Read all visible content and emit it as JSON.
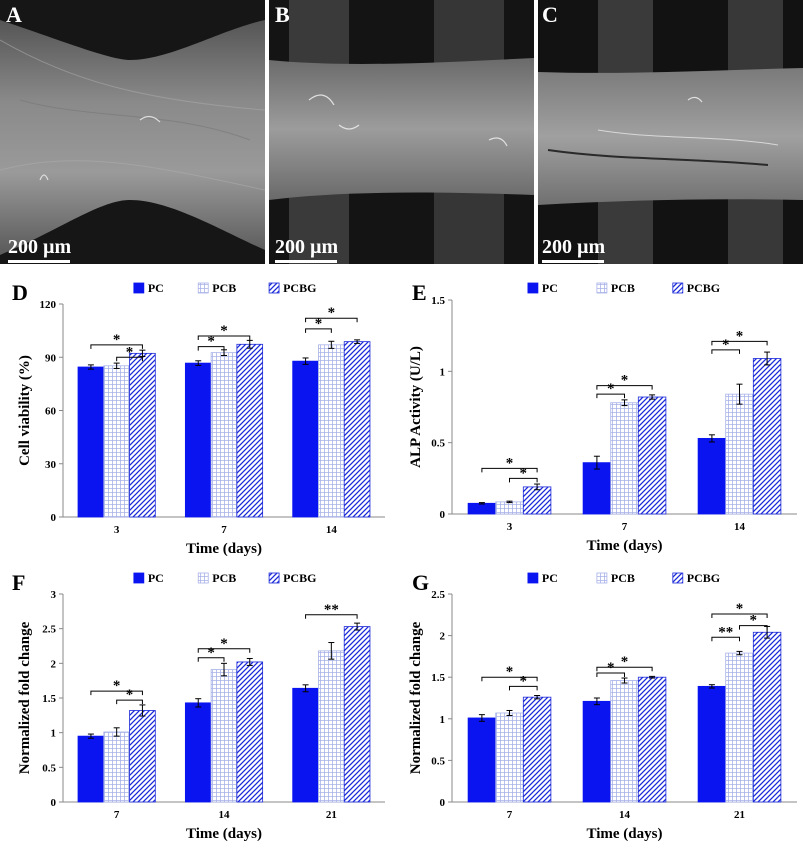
{
  "sem_panels": [
    {
      "letter": "A",
      "scalebar": "200 µm"
    },
    {
      "letter": "B",
      "scalebar": "200 µm"
    },
    {
      "letter": "C",
      "scalebar": "200 µm"
    }
  ],
  "legend_labels": [
    "PC",
    "PCB",
    "PCBG"
  ],
  "colors": {
    "pc": "#0a14f0",
    "pcb_line": "#a8b2e8",
    "pcbg_line": "#1a28d8"
  },
  "chart_data": [
    {
      "letter": "D",
      "type": "bar",
      "categories": [
        "3",
        "7",
        "14"
      ],
      "series": [
        {
          "name": "PC",
          "values": [
            84.5,
            86.7,
            87.8
          ],
          "err": [
            1.2,
            1.3,
            1.8
          ]
        },
        {
          "name": "PCB",
          "values": [
            85.2,
            92.6,
            97.0
          ],
          "err": [
            1.5,
            1.6,
            2.0
          ]
        },
        {
          "name": "PCBG",
          "values": [
            92.2,
            97.3,
            98.8
          ],
          "err": [
            1.8,
            2.2,
            1.0
          ]
        }
      ],
      "xlabel": "Time (days)",
      "ylabel": "Cell viability (%)",
      "ylim": [
        0,
        120
      ],
      "yticks": [
        "0",
        "30",
        "60",
        "90",
        "120"
      ],
      "significance": [
        {
          "group": 0,
          "from": 0,
          "to": 2,
          "y": 97,
          "label": "*"
        },
        {
          "group": 0,
          "from": 1,
          "to": 2,
          "y": 90,
          "label": "*"
        },
        {
          "group": 1,
          "from": 0,
          "to": 2,
          "y": 102,
          "label": "*"
        },
        {
          "group": 1,
          "from": 0,
          "to": 1,
          "y": 96,
          "label": "*"
        },
        {
          "group": 2,
          "from": 0,
          "to": 2,
          "y": 112,
          "label": "*"
        },
        {
          "group": 2,
          "from": 0,
          "to": 1,
          "y": 106,
          "label": "*"
        }
      ]
    },
    {
      "letter": "E",
      "type": "bar",
      "categories": [
        "3",
        "7",
        "14"
      ],
      "series": [
        {
          "name": "PC",
          "values": [
            0.075,
            0.36,
            0.53
          ],
          "err": [
            0.005,
            0.045,
            0.025
          ]
        },
        {
          "name": "PCB",
          "values": [
            0.085,
            0.78,
            0.84
          ],
          "err": [
            0.005,
            0.02,
            0.07
          ]
        },
        {
          "name": "PCBG",
          "values": [
            0.19,
            0.82,
            1.09
          ],
          "err": [
            0.02,
            0.015,
            0.045
          ]
        }
      ],
      "xlabel": "Time (days)",
      "ylabel": "ALP Activity (U/L)",
      "ylim": [
        0,
        1.5
      ],
      "yticks": [
        "0",
        "0.5",
        "1",
        "1.5"
      ],
      "significance": [
        {
          "group": 0,
          "from": 0,
          "to": 2,
          "y": 0.32,
          "label": "*"
        },
        {
          "group": 0,
          "from": 1,
          "to": 2,
          "y": 0.25,
          "label": "*"
        },
        {
          "group": 1,
          "from": 0,
          "to": 2,
          "y": 0.9,
          "label": "*"
        },
        {
          "group": 1,
          "from": 0,
          "to": 1,
          "y": 0.84,
          "label": "*"
        },
        {
          "group": 2,
          "from": 0,
          "to": 2,
          "y": 1.21,
          "label": "*"
        },
        {
          "group": 2,
          "from": 0,
          "to": 1,
          "y": 1.15,
          "label": "*"
        }
      ]
    },
    {
      "letter": "F",
      "type": "bar",
      "categories": [
        "7",
        "14",
        "21"
      ],
      "series": [
        {
          "name": "PC",
          "values": [
            0.95,
            1.43,
            1.64
          ],
          "err": [
            0.03,
            0.06,
            0.05
          ]
        },
        {
          "name": "PCB",
          "values": [
            1.01,
            1.91,
            2.18
          ],
          "err": [
            0.06,
            0.09,
            0.12
          ]
        },
        {
          "name": "PCBG",
          "values": [
            1.32,
            2.02,
            2.53
          ],
          "err": [
            0.08,
            0.05,
            0.05
          ]
        }
      ],
      "xlabel": "Time (days)",
      "ylabel": "Normalized fold change",
      "ylim": [
        0,
        3
      ],
      "yticks": [
        "0",
        "0.5",
        "1",
        "1.5",
        "2",
        "2.5",
        "3"
      ],
      "significance": [
        {
          "group": 0,
          "from": 0,
          "to": 2,
          "y": 1.6,
          "label": "*"
        },
        {
          "group": 0,
          "from": 1,
          "to": 2,
          "y": 1.47,
          "label": "*"
        },
        {
          "group": 1,
          "from": 0,
          "to": 2,
          "y": 2.21,
          "label": "*"
        },
        {
          "group": 1,
          "from": 0,
          "to": 1,
          "y": 2.08,
          "label": "*"
        },
        {
          "group": 2,
          "from": 0,
          "to": 2,
          "y": 2.7,
          "label": "**"
        }
      ]
    },
    {
      "letter": "G",
      "type": "bar",
      "categories": [
        "7",
        "14",
        "21"
      ],
      "series": [
        {
          "name": "PC",
          "values": [
            1.01,
            1.21,
            1.39
          ],
          "err": [
            0.04,
            0.04,
            0.02
          ]
        },
        {
          "name": "PCB",
          "values": [
            1.07,
            1.46,
            1.79
          ],
          "err": [
            0.03,
            0.03,
            0.02
          ]
        },
        {
          "name": "PCBG",
          "values": [
            1.26,
            1.5,
            2.04
          ],
          "err": [
            0.02,
            0.01,
            0.07
          ]
        }
      ],
      "xlabel": "Time (days)",
      "ylabel": "Normalized fold change",
      "ylim": [
        0,
        2.5
      ],
      "yticks": [
        "0",
        "0.5",
        "1",
        "1.5",
        "2",
        "2.5"
      ],
      "significance": [
        {
          "group": 0,
          "from": 0,
          "to": 2,
          "y": 1.5,
          "label": "*"
        },
        {
          "group": 0,
          "from": 1,
          "to": 2,
          "y": 1.39,
          "label": "*"
        },
        {
          "group": 1,
          "from": 0,
          "to": 2,
          "y": 1.62,
          "label": "*"
        },
        {
          "group": 1,
          "from": 0,
          "to": 1,
          "y": 1.55,
          "label": "*"
        },
        {
          "group": 2,
          "from": 0,
          "to": 2,
          "y": 2.26,
          "label": "*"
        },
        {
          "group": 2,
          "from": 1,
          "to": 2,
          "y": 2.12,
          "label": "*"
        },
        {
          "group": 2,
          "from": 0,
          "to": 1,
          "y": 1.98,
          "label": "**"
        }
      ]
    }
  ]
}
